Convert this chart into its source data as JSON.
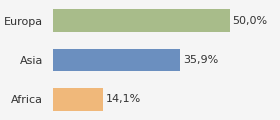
{
  "categories": [
    "Europa",
    "Asia",
    "Africa"
  ],
  "values": [
    50.0,
    35.9,
    14.1
  ],
  "colors": [
    "#a8bc8a",
    "#6b8fbf",
    "#f0b87a"
  ],
  "labels": [
    "50,0%",
    "35,9%",
    "14,1%"
  ],
  "background_color": "#f5f5f5",
  "bar_height": 0.58,
  "xlim": [
    0,
    63
  ],
  "fontsize_labels": 8.0,
  "fontsize_ticks": 8.0
}
